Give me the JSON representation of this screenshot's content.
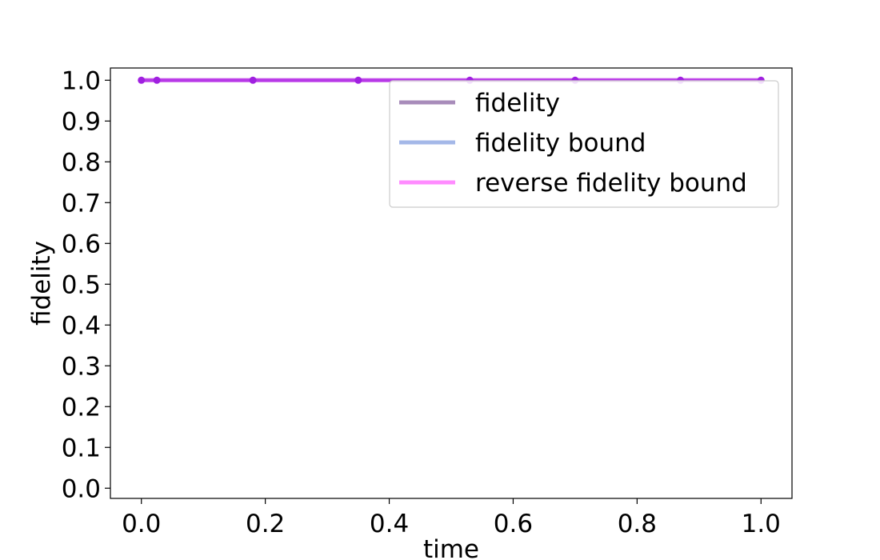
{
  "chart_data": {
    "type": "line",
    "title": "",
    "xlabel": "time",
    "ylabel": "fidelity",
    "xlim": [
      -0.05,
      1.05
    ],
    "ylim": [
      -0.025,
      1.03
    ],
    "x_ticks": [
      0.0,
      0.2,
      0.4,
      0.6,
      0.8,
      1.0
    ],
    "x_tick_labels": [
      "0.0",
      "0.2",
      "0.4",
      "0.6",
      "0.8",
      "1.0"
    ],
    "y_ticks": [
      0.0,
      0.1,
      0.2,
      0.3,
      0.4,
      0.5,
      0.6,
      0.7,
      0.8,
      0.9,
      1.0
    ],
    "y_tick_labels": [
      "0.0",
      "0.1",
      "0.2",
      "0.3",
      "0.4",
      "0.5",
      "0.6",
      "0.7",
      "0.8",
      "0.9",
      "1.0"
    ],
    "grid": false,
    "legend_position": "upper right",
    "x": [
      0.0,
      0.025,
      0.18,
      0.35,
      0.53,
      0.7,
      0.87,
      1.0
    ],
    "series": [
      {
        "name": "fidelity",
        "color": "#9e7fb3",
        "values": [
          1.0,
          1.0,
          1.0,
          1.0,
          1.0,
          1.0,
          1.0,
          1.0
        ]
      },
      {
        "name": "fidelity bound",
        "color": "#9ab0e6",
        "values": [
          1.0,
          1.0,
          1.0,
          1.0,
          1.0,
          1.0,
          1.0,
          1.0
        ]
      },
      {
        "name": "reverse fidelity bound",
        "color": "#ff80ff",
        "values": [
          1.0,
          1.0,
          1.0,
          1.0,
          1.0,
          1.0,
          1.0,
          1.0
        ]
      }
    ],
    "marker_color": "#a020e0"
  }
}
